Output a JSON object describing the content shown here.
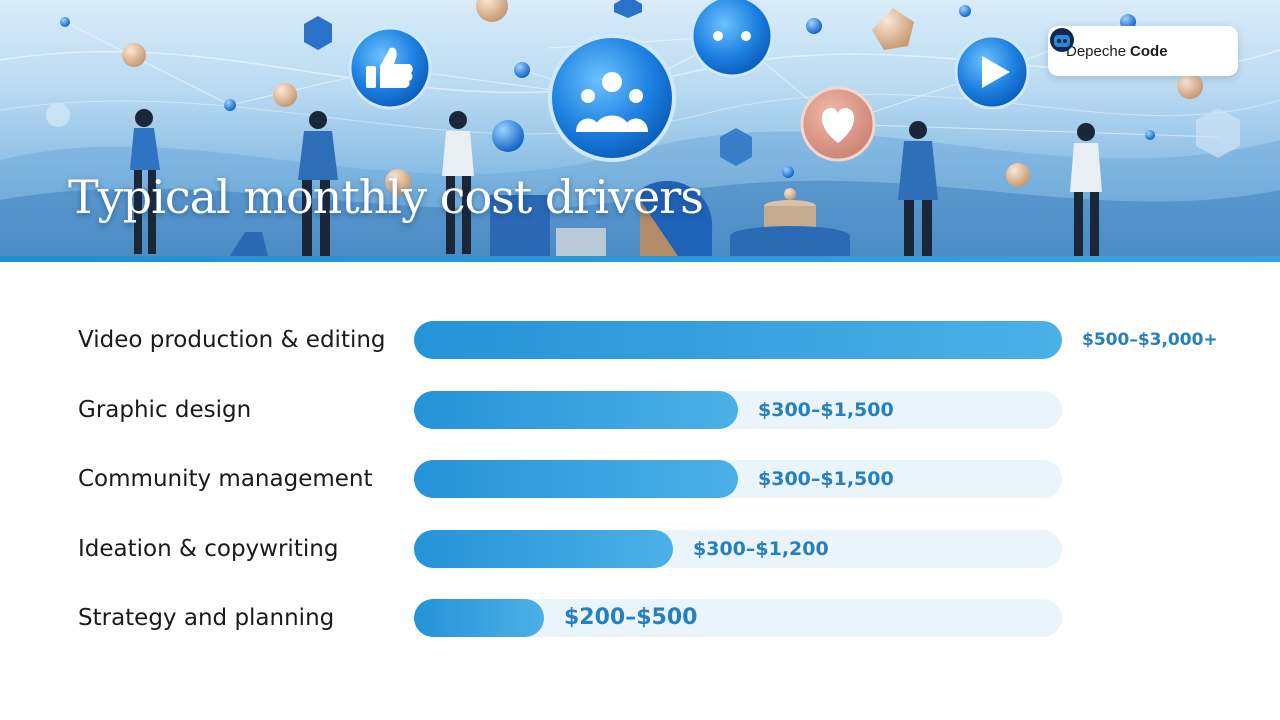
{
  "banner": {
    "title": "Typical monthly cost drivers",
    "brand": {
      "name_regular": "Depeche",
      "name_bold": "Code"
    }
  },
  "colors": {
    "accent": "#2593d8",
    "value_text": "#2680bf",
    "track": "#eaf4fb"
  },
  "chart_data": {
    "type": "bar",
    "orientation": "horizontal",
    "title": "Typical monthly cost drivers",
    "categories": [
      "Video production & editing",
      "Graphic design",
      "Community management",
      "Ideation & copywriting",
      "Strategy and planning"
    ],
    "series": [
      {
        "values": [
          3000,
          1500,
          1500,
          1200,
          500
        ],
        "ranges": [
          [
            500,
            3000
          ],
          [
            300,
            1500
          ],
          [
            300,
            1500
          ],
          [
            300,
            1200
          ],
          [
            200,
            500
          ]
        ],
        "labels": [
          "$500–$3,000+",
          "$300–$1,500",
          "$300–$1,500",
          "$300–$1,200",
          "$200–$500"
        ]
      }
    ],
    "xlim": [
      0,
      3000
    ],
    "grid": false,
    "legend": "none"
  }
}
